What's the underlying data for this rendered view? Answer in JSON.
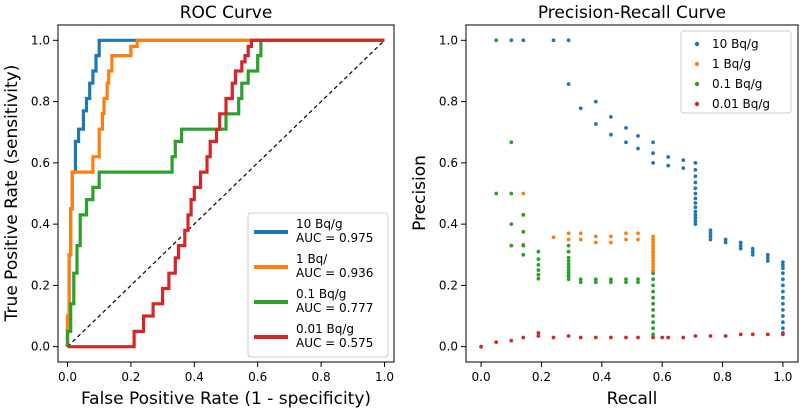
{
  "chart_data": [
    {
      "type": "line",
      "title": "ROC Curve",
      "xlabel": "False Positive Rate (1 - specificity)",
      "ylabel": "True Positive Rate (sensitivity)",
      "xlim": [
        -0.03,
        1.03
      ],
      "ylim": [
        -0.05,
        1.05
      ],
      "xticks": [
        "0.0",
        "0.2",
        "0.4",
        "0.6",
        "0.8",
        "1.0"
      ],
      "yticks": [
        "0.0",
        "0.2",
        "0.4",
        "0.6",
        "0.8",
        "1.0"
      ],
      "legend_position": "bottom-right",
      "diagonal": {
        "x": [
          0,
          1
        ],
        "y": [
          0,
          1
        ],
        "style": "dashed",
        "color": "#000000"
      },
      "series": [
        {
          "name": "10 Bq/g",
          "auc": "AUC = 0.975",
          "color": "#1f77b4",
          "x": [
            0,
            0,
            0.005,
            0.005,
            0.01,
            0.01,
            0.015,
            0.015,
            0.025,
            0.025,
            0.035,
            0.035,
            0.05,
            0.05,
            0.06,
            0.06,
            0.07,
            0.07,
            0.08,
            0.08,
            0.09,
            0.09,
            0.1,
            0.1,
            0.22,
            1
          ],
          "y": [
            0,
            0.1,
            0.1,
            0.3,
            0.3,
            0.45,
            0.45,
            0.57,
            0.57,
            0.67,
            0.67,
            0.71,
            0.71,
            0.77,
            0.77,
            0.81,
            0.81,
            0.86,
            0.86,
            0.9,
            0.9,
            0.95,
            0.95,
            1,
            1,
            1
          ]
        },
        {
          "name": "1 Bq/",
          "auc": "AUC = 0.936",
          "color": "#ff7f0e",
          "x": [
            0,
            0,
            0.005,
            0.005,
            0.01,
            0.01,
            0.015,
            0.015,
            0.03,
            0.03,
            0.08,
            0.08,
            0.1,
            0.1,
            0.11,
            0.11,
            0.115,
            0.115,
            0.125,
            0.125,
            0.13,
            0.13,
            0.14,
            0.14,
            0.16,
            0.16,
            0.2,
            0.2,
            0.22,
            0.22,
            1
          ],
          "y": [
            0,
            0.1,
            0.1,
            0.3,
            0.3,
            0.45,
            0.45,
            0.57,
            0.57,
            0.57,
            0.57,
            0.62,
            0.62,
            0.71,
            0.71,
            0.76,
            0.76,
            0.81,
            0.81,
            0.86,
            0.86,
            0.9,
            0.9,
            0.95,
            0.95,
            0.95,
            0.95,
            0.98,
            0.98,
            1,
            1
          ]
        },
        {
          "name": "0.1 Bq/g",
          "auc": "AUC = 0.777",
          "color": "#2ca02c",
          "x": [
            0,
            0,
            0.01,
            0.01,
            0.02,
            0.02,
            0.03,
            0.03,
            0.04,
            0.04,
            0.06,
            0.06,
            0.08,
            0.08,
            0.1,
            0.1,
            0.33,
            0.33,
            0.34,
            0.34,
            0.36,
            0.36,
            0.38,
            0.38,
            0.5,
            0.5,
            0.54,
            0.54,
            0.55,
            0.55,
            0.57,
            0.57,
            0.6,
            0.6,
            0.61,
            0.61,
            0.65,
            1
          ],
          "y": [
            0,
            0.05,
            0.05,
            0.14,
            0.14,
            0.24,
            0.24,
            0.33,
            0.33,
            0.43,
            0.43,
            0.48,
            0.48,
            0.52,
            0.52,
            0.57,
            0.57,
            0.62,
            0.62,
            0.67,
            0.67,
            0.71,
            0.71,
            0.71,
            0.71,
            0.76,
            0.76,
            0.81,
            0.81,
            0.86,
            0.86,
            0.9,
            0.9,
            0.95,
            0.95,
            1,
            1,
            1
          ]
        },
        {
          "name": "0.01 Bq/g",
          "auc": "AUC = 0.575",
          "color": "#d62728",
          "x": [
            0,
            0.21,
            0.21,
            0.24,
            0.24,
            0.27,
            0.27,
            0.3,
            0.3,
            0.32,
            0.32,
            0.34,
            0.34,
            0.35,
            0.35,
            0.37,
            0.37,
            0.38,
            0.38,
            0.39,
            0.39,
            0.4,
            0.4,
            0.42,
            0.42,
            0.44,
            0.44,
            0.45,
            0.45,
            0.47,
            0.47,
            0.48,
            0.48,
            0.5,
            0.5,
            0.52,
            0.52,
            0.53,
            0.53,
            0.55,
            0.55,
            0.56,
            0.56,
            0.57,
            0.57,
            0.58,
            0.58,
            0.6,
            0.6,
            0.62,
            0.62,
            1
          ],
          "y": [
            0,
            0,
            0.05,
            0.05,
            0.1,
            0.1,
            0.14,
            0.14,
            0.19,
            0.19,
            0.24,
            0.24,
            0.29,
            0.29,
            0.33,
            0.33,
            0.38,
            0.38,
            0.43,
            0.43,
            0.48,
            0.48,
            0.52,
            0.52,
            0.57,
            0.57,
            0.62,
            0.62,
            0.67,
            0.67,
            0.71,
            0.71,
            0.76,
            0.76,
            0.81,
            0.81,
            0.86,
            0.86,
            0.9,
            0.9,
            0.93,
            0.93,
            0.95,
            0.95,
            0.98,
            0.98,
            1,
            1,
            1,
            1,
            1,
            1
          ]
        }
      ]
    },
    {
      "type": "scatter",
      "title": "Precision-Recall Curve",
      "xlabel": "Recall",
      "ylabel": "Precision",
      "xlim": [
        -0.05,
        1.05
      ],
      "ylim": [
        -0.05,
        1.05
      ],
      "xticks": [
        "0.0",
        "0.2",
        "0.4",
        "0.6",
        "0.8",
        "1.0"
      ],
      "yticks": [
        "0.0",
        "0.2",
        "0.4",
        "0.6",
        "0.8",
        "1.0"
      ],
      "legend_position": "top-right",
      "series": [
        {
          "name": "10 Bq/g",
          "color": "#1f77b4",
          "points": [
            [
              0.05,
              1
            ],
            [
              0.1,
              1
            ],
            [
              0.14,
              1
            ],
            [
              0.24,
              1
            ],
            [
              0.29,
              1
            ],
            [
              0.29,
              0.857
            ],
            [
              0.33,
              0.778
            ],
            [
              0.38,
              0.8
            ],
            [
              0.38,
              0.727
            ],
            [
              0.43,
              0.75
            ],
            [
              0.43,
              0.692
            ],
            [
              0.48,
              0.714
            ],
            [
              0.48,
              0.667
            ],
            [
              0.52,
              0.688
            ],
            [
              0.52,
              0.647
            ],
            [
              0.57,
              0.667
            ],
            [
              0.57,
              0.632
            ],
            [
              0.57,
              0.6
            ],
            [
              0.62,
              0.619
            ],
            [
              0.62,
              0.591
            ],
            [
              0.67,
              0.609
            ],
            [
              0.67,
              0.583
            ],
            [
              0.71,
              0.6
            ],
            [
              0.71,
              0.577
            ],
            [
              0.71,
              0.556
            ],
            [
              0.71,
              0.536
            ],
            [
              0.71,
              0.517
            ],
            [
              0.71,
              0.5
            ],
            [
              0.71,
              0.484
            ],
            [
              0.71,
              0.469
            ],
            [
              0.71,
              0.455
            ],
            [
              0.71,
              0.441
            ],
            [
              0.71,
              0.43
            ],
            [
              0.71,
              0.42
            ],
            [
              0.71,
              0.41
            ],
            [
              0.71,
              0.4
            ],
            [
              0.76,
              0.38
            ],
            [
              0.76,
              0.37
            ],
            [
              0.76,
              0.36
            ],
            [
              0.76,
              0.35
            ],
            [
              0.81,
              0.35
            ],
            [
              0.81,
              0.34
            ],
            [
              0.86,
              0.34
            ],
            [
              0.86,
              0.33
            ],
            [
              0.86,
              0.32
            ],
            [
              0.9,
              0.32
            ],
            [
              0.9,
              0.31
            ],
            [
              0.9,
              0.3
            ],
            [
              0.95,
              0.3
            ],
            [
              0.95,
              0.29
            ],
            [
              0.95,
              0.28
            ],
            [
              1,
              0.276
            ],
            [
              1,
              0.266
            ],
            [
              1,
              0.256
            ],
            [
              1,
              0.24
            ],
            [
              1,
              0.22
            ],
            [
              1,
              0.2
            ],
            [
              1,
              0.18
            ],
            [
              1,
              0.16
            ],
            [
              1,
              0.14
            ],
            [
              1,
              0.12
            ],
            [
              1,
              0.1
            ],
            [
              1,
              0.08
            ],
            [
              1,
              0.06
            ],
            [
              1,
              0.045
            ]
          ]
        },
        {
          "name": "1 Bq/g",
          "color": "#ff7f0e",
          "points": [
            [
              0.14,
              0.5
            ],
            [
              0.14,
              0.43
            ],
            [
              0.14,
              0.375
            ],
            [
              0.14,
              0.333
            ],
            [
              0.14,
              0.3
            ],
            [
              0.24,
              0.357
            ],
            [
              0.29,
              0.37
            ],
            [
              0.29,
              0.35
            ],
            [
              0.33,
              0.37
            ],
            [
              0.33,
              0.35
            ],
            [
              0.38,
              0.36
            ],
            [
              0.38,
              0.34
            ],
            [
              0.43,
              0.36
            ],
            [
              0.43,
              0.34
            ],
            [
              0.48,
              0.37
            ],
            [
              0.48,
              0.35
            ],
            [
              0.52,
              0.37
            ],
            [
              0.52,
              0.35
            ],
            [
              0.57,
              0.36
            ],
            [
              0.57,
              0.35
            ],
            [
              0.57,
              0.34
            ],
            [
              0.57,
              0.33
            ],
            [
              0.57,
              0.32
            ],
            [
              0.57,
              0.31
            ],
            [
              0.57,
              0.3
            ],
            [
              0.57,
              0.29
            ],
            [
              0.57,
              0.28
            ],
            [
              0.57,
              0.27
            ],
            [
              0.57,
              0.26
            ],
            [
              0.57,
              0.25
            ],
            [
              0.57,
              0.24
            ]
          ]
        },
        {
          "name": "0.1 Bq/g",
          "color": "#2ca02c",
          "points": [
            [
              0.05,
              1
            ],
            [
              0.1,
              0.667
            ],
            [
              0.05,
              0.5
            ],
            [
              0.1,
              0.5
            ],
            [
              0.1,
              0.4
            ],
            [
              0.1,
              0.33
            ],
            [
              0.14,
              0.43
            ],
            [
              0.14,
              0.375
            ],
            [
              0.14,
              0.33
            ],
            [
              0.14,
              0.3
            ],
            [
              0.19,
              0.31
            ],
            [
              0.19,
              0.286
            ],
            [
              0.19,
              0.267
            ],
            [
              0.19,
              0.25
            ],
            [
              0.19,
              0.235
            ],
            [
              0.19,
              0.222
            ],
            [
              0.29,
              0.33
            ],
            [
              0.29,
              0.31
            ],
            [
              0.29,
              0.29
            ],
            [
              0.29,
              0.28
            ],
            [
              0.29,
              0.27
            ],
            [
              0.29,
              0.26
            ],
            [
              0.29,
              0.25
            ],
            [
              0.29,
              0.24
            ],
            [
              0.29,
              0.23
            ],
            [
              0.29,
              0.22
            ],
            [
              0.33,
              0.22
            ],
            [
              0.33,
              0.21
            ],
            [
              0.38,
              0.22
            ],
            [
              0.38,
              0.21
            ],
            [
              0.43,
              0.22
            ],
            [
              0.43,
              0.21
            ],
            [
              0.48,
              0.22
            ],
            [
              0.48,
              0.21
            ],
            [
              0.52,
              0.22
            ],
            [
              0.52,
              0.21
            ],
            [
              0.57,
              0.24
            ],
            [
              0.57,
              0.22
            ],
            [
              0.57,
              0.2
            ],
            [
              0.57,
              0.18
            ],
            [
              0.57,
              0.16
            ],
            [
              0.57,
              0.14
            ],
            [
              0.57,
              0.12
            ],
            [
              0.57,
              0.1
            ],
            [
              0.57,
              0.08
            ],
            [
              0.57,
              0.06
            ],
            [
              0.57,
              0.04
            ]
          ]
        },
        {
          "name": "0.01 Bq/g",
          "color": "#d62728",
          "points": [
            [
              0,
              0
            ],
            [
              0.05,
              0.015
            ],
            [
              0.1,
              0.02
            ],
            [
              0.14,
              0.03
            ],
            [
              0.19,
              0.035
            ],
            [
              0.19,
              0.045
            ],
            [
              0.24,
              0.03
            ],
            [
              0.29,
              0.035
            ],
            [
              0.33,
              0.03
            ],
            [
              0.38,
              0.03
            ],
            [
              0.43,
              0.03
            ],
            [
              0.48,
              0.03
            ],
            [
              0.52,
              0.03
            ],
            [
              0.57,
              0.03
            ],
            [
              0.6,
              0.03
            ],
            [
              0.62,
              0.03
            ],
            [
              0.67,
              0.03
            ],
            [
              0.71,
              0.035
            ],
            [
              0.76,
              0.035
            ],
            [
              0.81,
              0.035
            ],
            [
              0.86,
              0.04
            ],
            [
              0.9,
              0.04
            ],
            [
              0.95,
              0.04
            ],
            [
              1,
              0.04
            ]
          ]
        }
      ]
    }
  ]
}
